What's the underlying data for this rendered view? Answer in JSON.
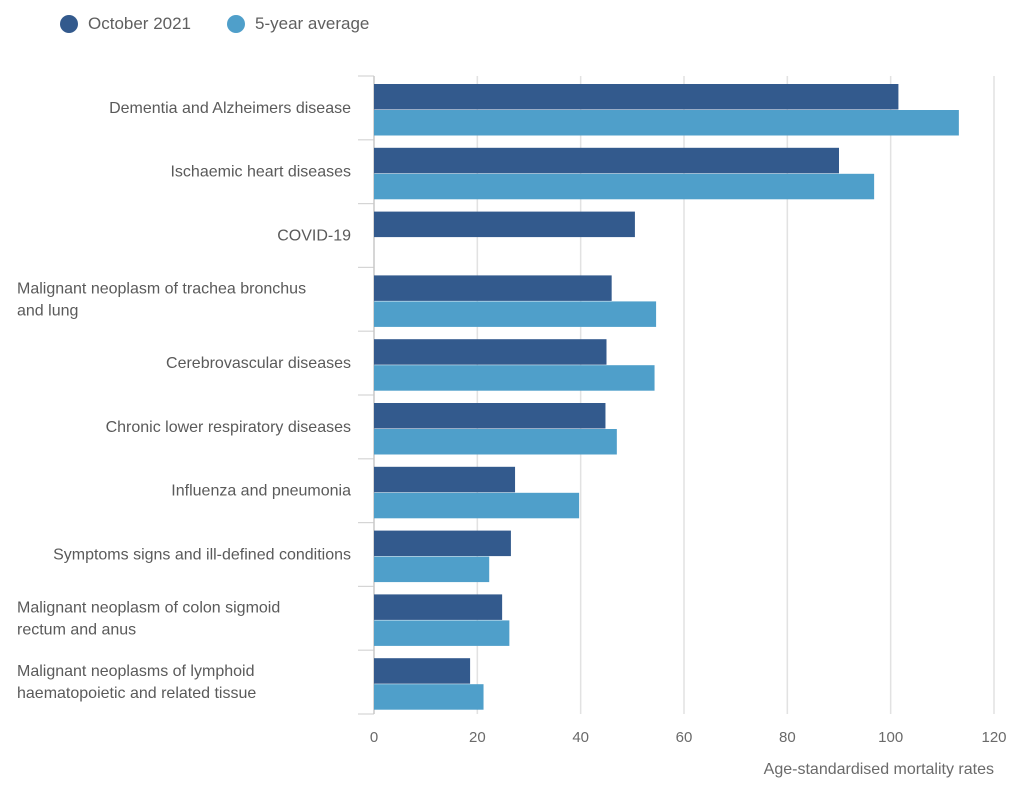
{
  "chart_data": {
    "type": "bar",
    "orientation": "horizontal",
    "categories": [
      [
        "Dementia and Alzheimers disease"
      ],
      [
        "Ischaemic heart diseases"
      ],
      [
        "COVID-19"
      ],
      [
        "Malignant neoplasm of trachea bronchus",
        "and lung"
      ],
      [
        "Cerebrovascular diseases"
      ],
      [
        "Chronic lower respiratory diseases"
      ],
      [
        "Influenza and pneumonia"
      ],
      [
        "Symptoms signs and ill-defined conditions"
      ],
      [
        "Malignant neoplasm of colon sigmoid",
        "rectum and anus"
      ],
      [
        "Malignant neoplasms of lymphoid",
        "haematopoietic and related tissue"
      ]
    ],
    "series": [
      {
        "name": "October 2021",
        "color": "#335a8d",
        "values": [
          101.5,
          90,
          50.5,
          46,
          45,
          44.8,
          27.3,
          26.5,
          24.8,
          18.6
        ]
      },
      {
        "name": "5-year average",
        "color": "#4f9fca",
        "values": [
          113.2,
          96.8,
          null,
          54.6,
          54.3,
          47,
          39.7,
          22.3,
          26.2,
          21.2
        ]
      }
    ],
    "xlim": [
      0,
      120
    ],
    "xticks": [
      0,
      20,
      40,
      60,
      80,
      100,
      120
    ],
    "xlabel": "Age-standardised mortality rates",
    "legend_position": "top-left",
    "grid": true
  }
}
